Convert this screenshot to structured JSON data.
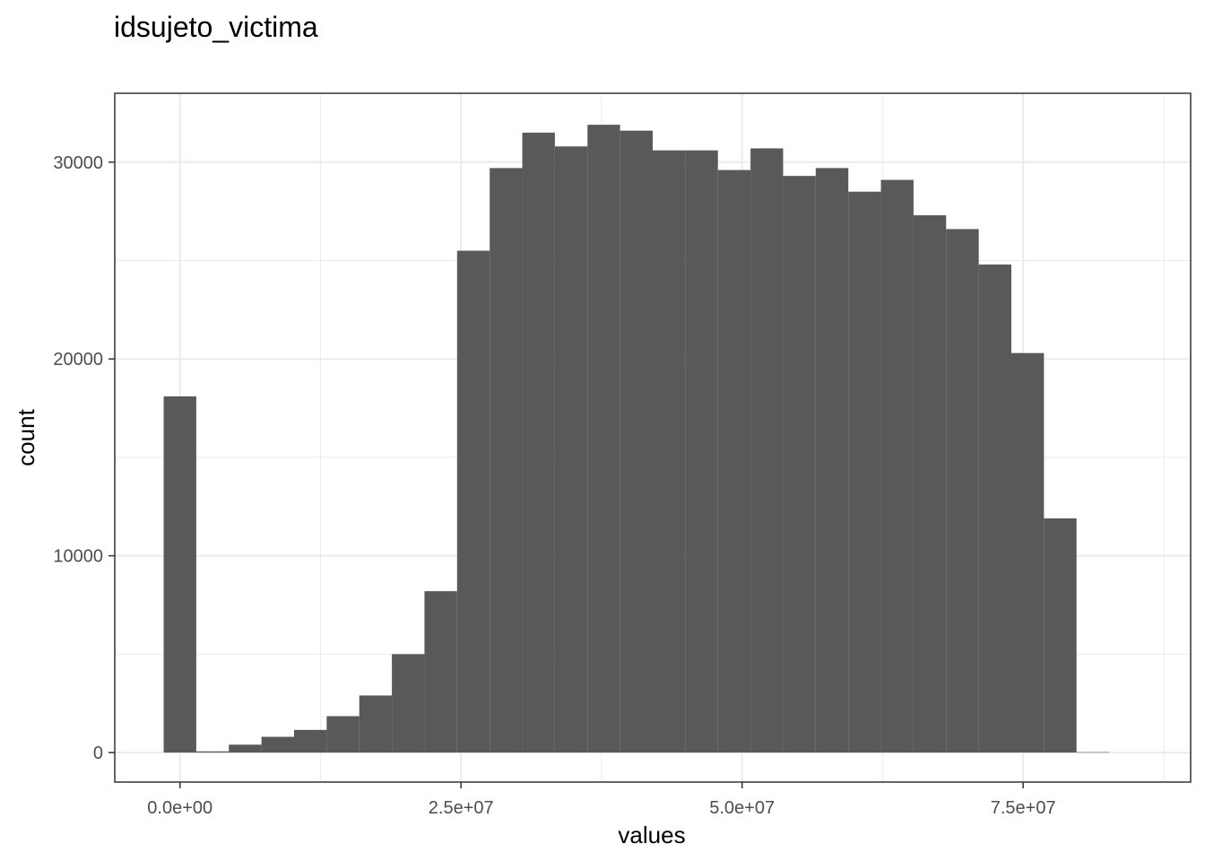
{
  "chart_data": {
    "type": "bar",
    "title": "idsujeto_victima",
    "xlabel": "values",
    "ylabel": "count",
    "bin_width": 2900000,
    "bins": [
      {
        "x": 0,
        "count": 18100
      },
      {
        "x": 2900000,
        "count": 60
      },
      {
        "x": 5800000,
        "count": 400
      },
      {
        "x": 8700000,
        "count": 800
      },
      {
        "x": 11600000,
        "count": 1150
      },
      {
        "x": 14500000,
        "count": 1850
      },
      {
        "x": 17400000,
        "count": 2900
      },
      {
        "x": 20300000,
        "count": 5000
      },
      {
        "x": 23200000,
        "count": 8200
      },
      {
        "x": 26100000,
        "count": 25500
      },
      {
        "x": 29000000,
        "count": 29700
      },
      {
        "x": 31900000,
        "count": 31500
      },
      {
        "x": 34800000,
        "count": 30800
      },
      {
        "x": 37700000,
        "count": 31900
      },
      {
        "x": 40600000,
        "count": 31600
      },
      {
        "x": 43500000,
        "count": 30600
      },
      {
        "x": 46400000,
        "count": 30600
      },
      {
        "x": 49300000,
        "count": 29600
      },
      {
        "x": 52200000,
        "count": 30700
      },
      {
        "x": 55100000,
        "count": 29300
      },
      {
        "x": 58000000,
        "count": 29700
      },
      {
        "x": 60900000,
        "count": 28500
      },
      {
        "x": 63800000,
        "count": 29100
      },
      {
        "x": 66700000,
        "count": 27300
      },
      {
        "x": 69600000,
        "count": 26600
      },
      {
        "x": 72500000,
        "count": 24800
      },
      {
        "x": 75400000,
        "count": 20300
      },
      {
        "x": 78300000,
        "count": 11900
      },
      {
        "x": 81200000,
        "count": 20
      }
    ],
    "xlim": [
      -5800000,
      89900000
    ],
    "ylim": [
      -1500,
      33500
    ],
    "x_ticks": [
      {
        "value": 0,
        "label": "0.0e+00"
      },
      {
        "value": 25000000,
        "label": "2.5e+07"
      },
      {
        "value": 50000000,
        "label": "5.0e+07"
      },
      {
        "value": 75000000,
        "label": "7.5e+07"
      }
    ],
    "x_minor_ticks": [
      12500000,
      37500000,
      62500000,
      87500000
    ],
    "y_ticks": [
      {
        "value": 0,
        "label": "0"
      },
      {
        "value": 10000,
        "label": "10000"
      },
      {
        "value": 20000,
        "label": "20000"
      },
      {
        "value": 30000,
        "label": "30000"
      }
    ],
    "y_minor_ticks": [
      5000,
      15000,
      25000
    ],
    "grid": true,
    "bar_color": "#595959",
    "grid_color": "#ebebeb",
    "panel_border_color": "#333333"
  }
}
